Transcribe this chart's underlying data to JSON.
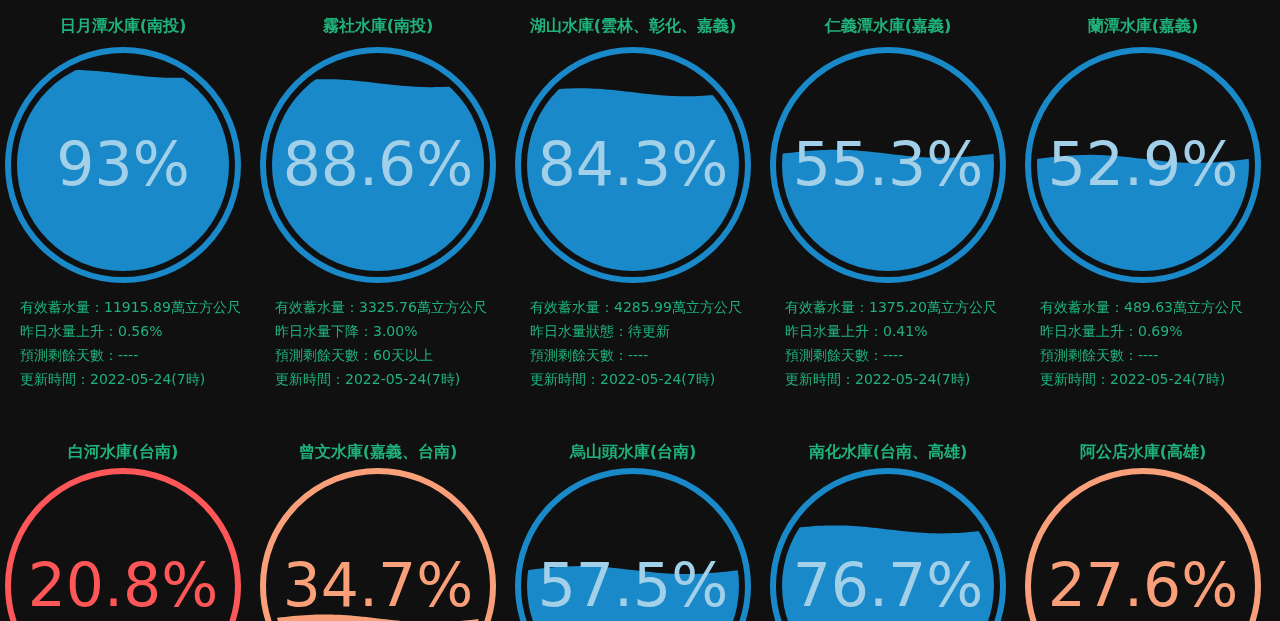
{
  "chart_data": [
    {
      "type": "other",
      "title": "日月潭水庫(南投)",
      "values": [
        93
      ],
      "value_labels": [
        "93%"
      ],
      "color": "#1a89c9",
      "annotations": [
        "有效蓄水量：11915.89萬立方公尺",
        "昨日水量上升：0.56%",
        "預測剩餘天數：----",
        "更新時間：2022-05-24(7時)"
      ]
    },
    {
      "type": "other",
      "title": "霧社水庫(南投)",
      "values": [
        88.6
      ],
      "value_labels": [
        "88.6%"
      ],
      "color": "#1a89c9",
      "annotations": [
        "有效蓄水量：3325.76萬立方公尺",
        "昨日水量下降：3.00%",
        "預測剩餘天數：60天以上",
        "更新時間：2022-05-24(7時)"
      ]
    },
    {
      "type": "other",
      "title": "湖山水庫(雲林、彰化、嘉義)",
      "values": [
        84.3
      ],
      "value_labels": [
        "84.3%"
      ],
      "color": "#1a89c9",
      "annotations": [
        "有效蓄水量：4285.99萬立方公尺",
        "昨日水量狀態：待更新",
        "預測剩餘天數：----",
        "更新時間：2022-05-24(7時)"
      ]
    },
    {
      "type": "other",
      "title": "仁義潭水庫(嘉義)",
      "values": [
        55.3
      ],
      "value_labels": [
        "55.3%"
      ],
      "color": "#1a89c9",
      "annotations": [
        "有效蓄水量：1375.20萬立方公尺",
        "昨日水量上升：0.41%",
        "預測剩餘天數：----",
        "更新時間：2022-05-24(7時)"
      ]
    },
    {
      "type": "other",
      "title": "蘭潭水庫(嘉義)",
      "values": [
        52.9
      ],
      "value_labels": [
        "52.9%"
      ],
      "color": "#1a89c9",
      "annotations": [
        "有效蓄水量：489.63萬立方公尺",
        "昨日水量上升：0.69%",
        "預測剩餘天數：----",
        "更新時間：2022-05-24(7時)"
      ]
    },
    {
      "type": "other",
      "title": "白河水庫(台南)",
      "values": [
        20.8
      ],
      "value_labels": [
        "20.8%"
      ],
      "color": "#ff5757"
    },
    {
      "type": "other",
      "title": "曾文水庫(嘉義、台南)",
      "values": [
        34.7
      ],
      "value_labels": [
        "34.7%"
      ],
      "color": "#f9a07a"
    },
    {
      "type": "other",
      "title": "烏山頭水庫(台南)",
      "values": [
        57.5
      ],
      "value_labels": [
        "57.5%"
      ],
      "color": "#1a89c9"
    },
    {
      "type": "other",
      "title": "南化水庫(台南、高雄)",
      "values": [
        76.7
      ],
      "value_labels": [
        "76.7%"
      ],
      "color": "#1a89c9"
    },
    {
      "type": "other",
      "title": "阿公店水庫(高雄)",
      "values": [
        27.6
      ],
      "value_labels": [
        "27.6%"
      ],
      "color": "#f9a07a"
    }
  ]
}
